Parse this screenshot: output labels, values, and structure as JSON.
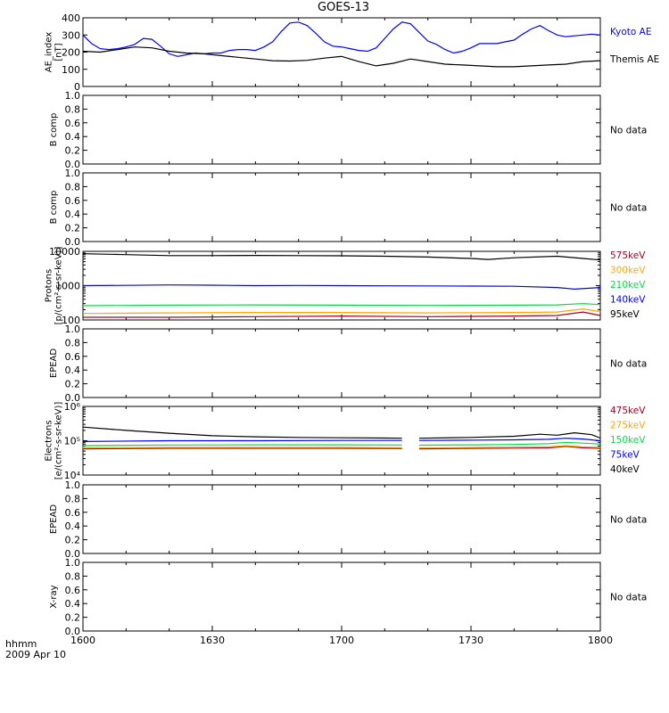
{
  "chart_data": {
    "title": "GOES-13",
    "type": "line",
    "x_axis": {
      "label": "hhmm",
      "date": "2009 Apr 10",
      "ticks": [
        "1600",
        "1630",
        "1700",
        "1730",
        "1800"
      ],
      "range_minutes": [
        0,
        120
      ]
    },
    "panels": [
      {
        "ylabel": [
          "AE_index",
          "[nT]"
        ],
        "scale": "linear",
        "ylim": [
          0,
          400
        ],
        "yticks": [
          "0",
          "100",
          "200",
          "300",
          "400"
        ],
        "series": [
          {
            "name": "Kyoto AE",
            "color": "#0000ff",
            "x": [
              0,
              2,
              4,
              6,
              8,
              10,
              12,
              14,
              16,
              18,
              20,
              22,
              24,
              26,
              28,
              30,
              32,
              34,
              36,
              38,
              40,
              42,
              44,
              46,
              48,
              50,
              52,
              54,
              56,
              58,
              60,
              62,
              64,
              66,
              68,
              70,
              72,
              74,
              76,
              78,
              80,
              82,
              84,
              86,
              88,
              90,
              92,
              94,
              96,
              98,
              100,
              102,
              104,
              106,
              108,
              110,
              112,
              114,
              116,
              118,
              120
            ],
            "values": [
              300,
              250,
              220,
              215,
              220,
              230,
              245,
              280,
              275,
              235,
              190,
              175,
              185,
              195,
              190,
              195,
              195,
              210,
              215,
              215,
              210,
              230,
              260,
              320,
              370,
              375,
              355,
              310,
              260,
              235,
              230,
              220,
              210,
              205,
              225,
              280,
              335,
              375,
              365,
              315,
              265,
              245,
              215,
              195,
              205,
              225,
              250,
              250,
              250,
              260,
              270,
              305,
              335,
              355,
              325,
              300,
              290,
              295,
              300,
              305,
              300
            ]
          },
          {
            "name": "Themis AE",
            "color": "#000000",
            "x": [
              0,
              4,
              8,
              12,
              16,
              20,
              24,
              28,
              32,
              36,
              40,
              44,
              48,
              52,
              56,
              60,
              64,
              68,
              72,
              76,
              80,
              84,
              88,
              92,
              96,
              100,
              104,
              108,
              112,
              116,
              120
            ],
            "values": [
              205,
              200,
              215,
              230,
              225,
              205,
              195,
              190,
              180,
              170,
              160,
              150,
              148,
              152,
              165,
              175,
              145,
              120,
              135,
              160,
              145,
              130,
              125,
              120,
              115,
              115,
              120,
              125,
              130,
              145,
              150
            ]
          }
        ]
      },
      {
        "ylabel": [
          "B comp"
        ],
        "scale": "linear",
        "ylim": [
          0,
          1
        ],
        "yticks": [
          "0.0",
          "0.2",
          "0.4",
          "0.6",
          "0.8",
          "1.0"
        ],
        "note": "No data",
        "series": []
      },
      {
        "ylabel": [
          "B comp"
        ],
        "scale": "linear",
        "ylim": [
          0,
          1
        ],
        "yticks": [
          "0.0",
          "0.2",
          "0.4",
          "0.6",
          "0.8",
          "1.0"
        ],
        "note": "No data",
        "series": []
      },
      {
        "ylabel": [
          "Protons",
          "[p/(cm²-s-sr-keV)]"
        ],
        "scale": "log",
        "ylim": [
          100,
          10000
        ],
        "yticks": [
          "100",
          "1000",
          "10000"
        ],
        "series": [
          {
            "name": "575keV",
            "color": "#a50021",
            "x": [
              0,
              20,
              40,
              60,
              80,
              100,
              110,
              116,
              120
            ],
            "values": [
              120,
              120,
              125,
              130,
              125,
              130,
              135,
              170,
              135
            ]
          },
          {
            "name": "300keV",
            "color": "#ffa500",
            "x": [
              0,
              20,
              40,
              60,
              80,
              100,
              110,
              116,
              120
            ],
            "values": [
              155,
              160,
              165,
              165,
              160,
              165,
              170,
              210,
              175
            ]
          },
          {
            "name": "210keV",
            "color": "#00e040",
            "x": [
              0,
              20,
              40,
              60,
              80,
              100,
              110,
              116,
              120
            ],
            "values": [
              260,
              270,
              275,
              270,
              265,
              270,
              275,
              300,
              280
            ]
          },
          {
            "name": "140keV",
            "color": "#0000ff",
            "x": [
              0,
              10,
              20,
              30,
              40,
              50,
              60,
              70,
              80,
              90,
              100,
              110,
              114,
              120
            ],
            "values": [
              1000,
              1020,
              1050,
              1030,
              1000,
              1010,
              1000,
              990,
              980,
              970,
              960,
              880,
              790,
              880
            ]
          },
          {
            "name": "95keV",
            "color": "#000000",
            "x": [
              0,
              10,
              20,
              30,
              40,
              50,
              60,
              70,
              80,
              90,
              94,
              100,
              110,
              116,
              120
            ],
            "values": [
              8500,
              8000,
              7500,
              7500,
              7600,
              7500,
              7400,
              7200,
              6800,
              6200,
              5800,
              6500,
              7200,
              6200,
              5600
            ]
          }
        ]
      },
      {
        "ylabel": [
          "EPEAD"
        ],
        "scale": "linear",
        "ylim": [
          0,
          1
        ],
        "yticks": [
          "0.0",
          "0.2",
          "0.4",
          "0.6",
          "0.8",
          "1.0"
        ],
        "note": "No data",
        "series": []
      },
      {
        "ylabel": [
          "Electrons",
          "[e/(cm²-s-sr-keV)]"
        ],
        "scale": "log",
        "ylim": [
          10000,
          1000000
        ],
        "yticks": [
          "10⁴",
          "10⁵",
          "10⁶"
        ],
        "series": [
          {
            "name": "475keV",
            "color": "#a50021",
            "x": [
              0,
              20,
              40,
              60,
              74,
              76,
              78,
              92,
              100,
              108,
              112,
              116,
              120
            ],
            "values": [
              58000,
              60000,
              60000,
              60000,
              59000,
              null,
              58000,
              60000,
              61000,
              62000,
              68000,
              62000,
              60000
            ]
          },
          {
            "name": "275keV",
            "color": "#ffa500",
            "x": [
              0,
              20,
              40,
              60,
              74,
              76,
              78,
              92,
              100,
              108,
              112,
              116,
              120
            ],
            "values": [
              62000,
              64000,
              64000,
              64000,
              63000,
              null,
              62000,
              64000,
              65000,
              66000,
              72000,
              66000,
              64000
            ]
          },
          {
            "name": "150keV",
            "color": "#00e040",
            "x": [
              0,
              20,
              40,
              60,
              74,
              76,
              78,
              92,
              100,
              108,
              112,
              116,
              120
            ],
            "values": [
              72000,
              75000,
              76000,
              76000,
              75000,
              null,
              74000,
              76000,
              78000,
              82000,
              90000,
              85000,
              80000
            ]
          },
          {
            "name": "75keV",
            "color": "#0000ff",
            "x": [
              0,
              20,
              40,
              60,
              74,
              76,
              78,
              92,
              100,
              108,
              112,
              116,
              120
            ],
            "values": [
              95000,
              100000,
              100000,
              102000,
              102000,
              null,
              102000,
              104000,
              106000,
              110000,
              118000,
              112000,
              100000
            ]
          },
          {
            "name": "40keV",
            "color": "#000000",
            "x": [
              0,
              10,
              20,
              30,
              40,
              50,
              60,
              70,
              74,
              76,
              78,
              90,
              100,
              106,
              110,
              114,
              118,
              120
            ],
            "values": [
              250000,
              200000,
              165000,
              140000,
              130000,
              125000,
              122000,
              120000,
              118000,
              null,
              118000,
              125000,
              135000,
              155000,
              145000,
              170000,
              150000,
              120000
            ]
          }
        ]
      },
      {
        "ylabel": [
          "EPEAD"
        ],
        "scale": "linear",
        "ylim": [
          0,
          1
        ],
        "yticks": [
          "0.0",
          "0.2",
          "0.4",
          "0.6",
          "0.8",
          "1.0"
        ],
        "note": "No data",
        "series": []
      },
      {
        "ylabel": [
          "X-ray"
        ],
        "scale": "linear",
        "ylim": [
          0,
          1
        ],
        "yticks": [
          "0.0",
          "0.2",
          "0.4",
          "0.6",
          "0.8",
          "1.0"
        ],
        "note": "No data",
        "series": []
      }
    ]
  }
}
